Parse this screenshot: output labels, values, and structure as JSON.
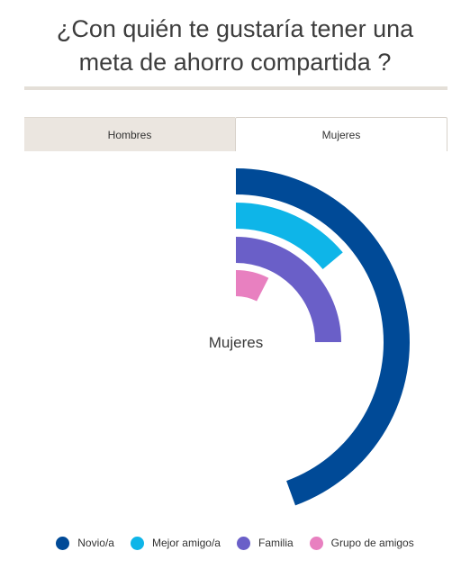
{
  "header": {
    "title_line1": "¿Con quién te gustaría tener una",
    "title_line2": "meta de ahorro compartida ?"
  },
  "tabs": [
    {
      "label": "Hombres",
      "active": false
    },
    {
      "label": "Mujeres",
      "active": true
    }
  ],
  "colors": {
    "novio": "#004a97",
    "mejor_amigo": "#0eb5e8",
    "familia": "#6a5fc8",
    "grupo": "#e880c0"
  },
  "chart_data": {
    "type": "radial-bar",
    "center_label": "Mujeres",
    "categories": [
      "Novio/a",
      "Mejor amigo/a",
      "Familia",
      "Grupo de amigos"
    ],
    "series": [
      {
        "name": "Novio/a",
        "value_deg": 160,
        "color": "#004a97"
      },
      {
        "name": "Mejor amigo/a",
        "value_deg": 50,
        "color": "#0eb5e8"
      },
      {
        "name": "Familia",
        "value_deg": 90,
        "color": "#6a5fc8"
      },
      {
        "name": "Grupo de amigos",
        "value_deg": 27,
        "color": "#e880c0"
      }
    ],
    "legend_position": "bottom"
  }
}
